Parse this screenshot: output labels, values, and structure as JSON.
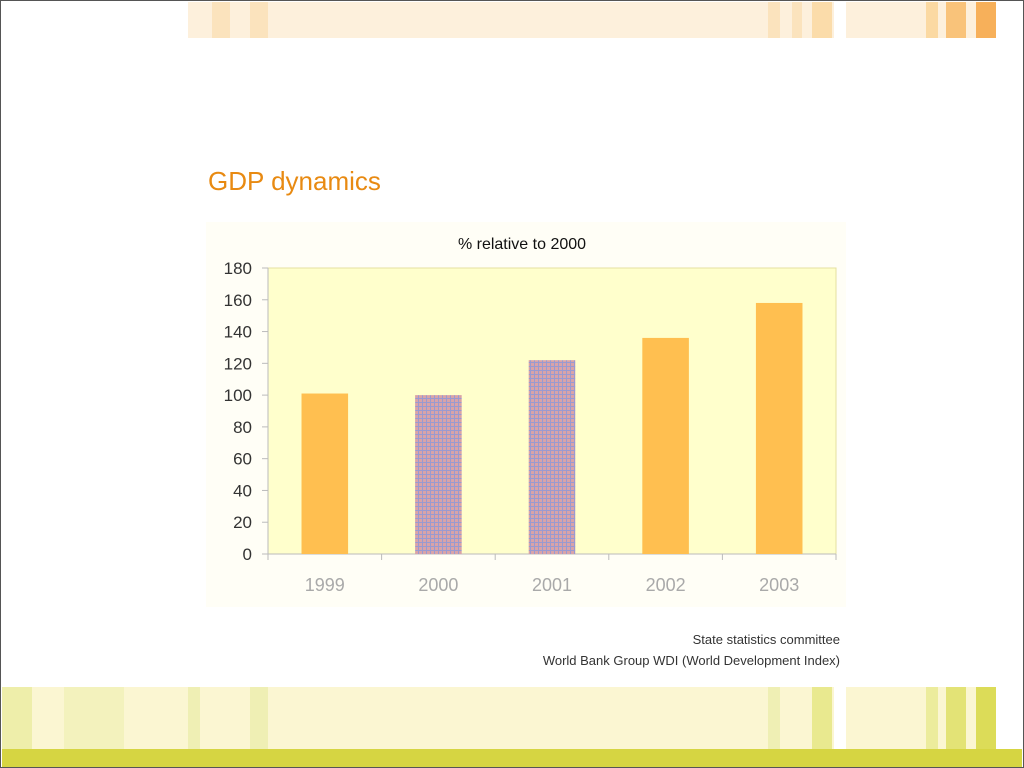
{
  "slide": {
    "title": "GDP dynamics",
    "sources": [
      "State statistics committee",
      "World Bank Group WDI (World Development Index)"
    ]
  },
  "colors": {
    "title": "#e88a12",
    "plot_bg": "#ffffcc",
    "bar_solid": "#ffbf50",
    "bar_hatched_base": "#d9a3a8",
    "bar_hatched_grid": "#9a9ad0",
    "axis": "#bbbbbb",
    "xtick_text": "#a9a9a9",
    "ytick_text": "#333333"
  },
  "chart_data": {
    "type": "bar",
    "title": "% relative to 2000",
    "xlabel": "",
    "ylabel": "",
    "categories": [
      "1999",
      "2000",
      "2001",
      "2002",
      "2003"
    ],
    "values": [
      101,
      100,
      122,
      136,
      158
    ],
    "bar_fill": [
      "solid",
      "hatched",
      "hatched",
      "solid",
      "solid"
    ],
    "ylim": [
      0,
      180
    ],
    "yticks": [
      0,
      20,
      40,
      60,
      80,
      100,
      120,
      140,
      160,
      180
    ],
    "grid": false,
    "legend": "none"
  }
}
